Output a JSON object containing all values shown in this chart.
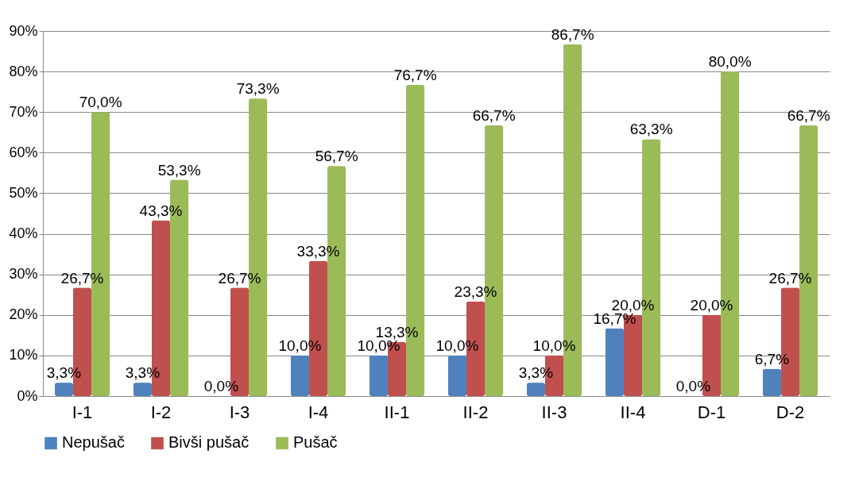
{
  "chart_data": {
    "type": "bar",
    "categories": [
      "I-1",
      "I-2",
      "I-3",
      "I-4",
      "II-1",
      "II-2",
      "II-3",
      "II-4",
      "D-1",
      "D-2"
    ],
    "series": [
      {
        "name": "Nepušač",
        "color": "#4f81bd",
        "values": [
          3.3,
          3.3,
          0,
          10,
          10,
          10,
          3.3,
          16.7,
          0,
          6.7
        ],
        "value_labels": [
          "3,3%",
          "3,3%",
          "0,0%",
          "10,0%",
          "10,0%",
          "10,0%",
          "3,3%",
          "16,7%",
          "0,0%",
          "6,7%"
        ]
      },
      {
        "name": "Bivši pušač",
        "color": "#c0504d",
        "values": [
          26.7,
          43.3,
          26.7,
          33.3,
          13.3,
          23.3,
          10,
          20,
          20,
          26.7
        ],
        "value_labels": [
          "26,7%",
          "43,3%",
          "26,7%",
          "33,3%",
          "13,3%",
          "23,3%",
          "10,0%",
          "20,0%",
          "20,0%",
          "26,7%"
        ]
      },
      {
        "name": "Pušač",
        "color": "#9bbb59",
        "values": [
          70,
          53.3,
          73.3,
          56.7,
          76.7,
          66.7,
          86.7,
          63.3,
          80,
          66.7
        ],
        "value_labels": [
          "70,0%",
          "53,3%",
          "73,3%",
          "56,7%",
          "76,7%",
          "66,7%",
          "86,7%",
          "63,3%",
          "80,0%",
          "66,7%"
        ]
      }
    ],
    "ylim": [
      0,
      90
    ],
    "yticks": [
      {
        "value": 0,
        "label": "0%"
      },
      {
        "value": 10,
        "label": "10%"
      },
      {
        "value": 20,
        "label": "20%"
      },
      {
        "value": 30,
        "label": "30%"
      },
      {
        "value": 40,
        "label": "40%"
      },
      {
        "value": 50,
        "label": "50%"
      },
      {
        "value": 60,
        "label": "60%"
      },
      {
        "value": 70,
        "label": "70%"
      },
      {
        "value": 80,
        "label": "80%"
      },
      {
        "value": 90,
        "label": "90%"
      }
    ],
    "grid": "y",
    "legend": "bottom"
  }
}
